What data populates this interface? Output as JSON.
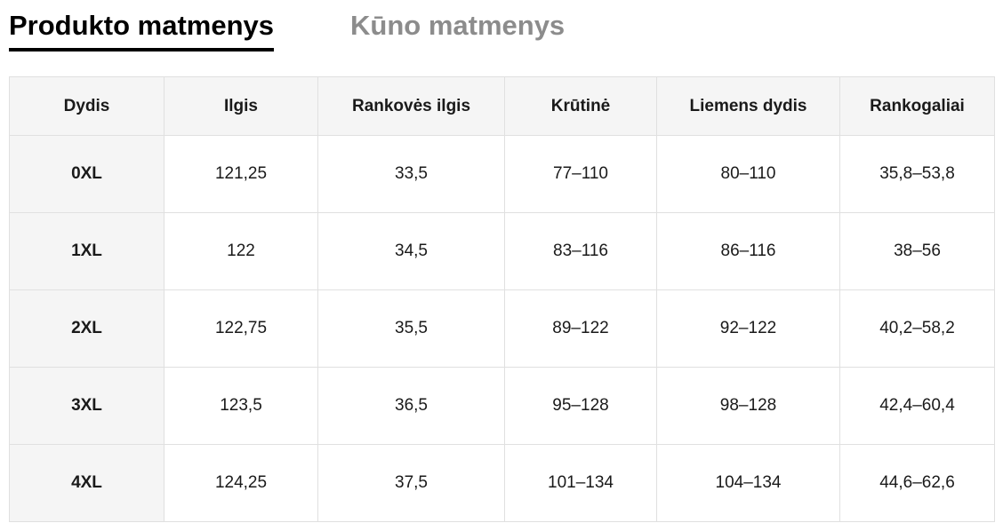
{
  "tabs": {
    "product": {
      "label": "Produkto matmenys",
      "active": true
    },
    "body": {
      "label": "Kūno matmenys",
      "active": false
    }
  },
  "table": {
    "columns": [
      "Dydis",
      "Ilgis",
      "Rankovės ilgis",
      "Krūtinė",
      "Liemens dydis",
      "Rankogaliai"
    ],
    "rows": [
      {
        "size": "0XL",
        "values": [
          "121,25",
          "33,5",
          "77–110",
          "80–110",
          "35,8–53,8"
        ]
      },
      {
        "size": "1XL",
        "values": [
          "122",
          "34,5",
          "83–116",
          "86–116",
          "38–56"
        ]
      },
      {
        "size": "2XL",
        "values": [
          "122,75",
          "35,5",
          "89–122",
          "92–122",
          "40,2–58,2"
        ]
      },
      {
        "size": "3XL",
        "values": [
          "123,5",
          "36,5",
          "95–128",
          "98–128",
          "42,4–60,4"
        ]
      },
      {
        "size": "4XL",
        "values": [
          "124,25",
          "37,5",
          "101–134",
          "104–134",
          "44,6–62,6"
        ]
      }
    ]
  },
  "colors": {
    "active_tab_text": "#000000",
    "active_tab_underline": "#000000",
    "inactive_tab_text": "#8c8c8c",
    "header_background": "#f5f5f5",
    "size_column_background": "#f5f5f5",
    "cell_background": "#ffffff",
    "border": "#e0e0e0",
    "cell_text": "#1a1a1a"
  }
}
